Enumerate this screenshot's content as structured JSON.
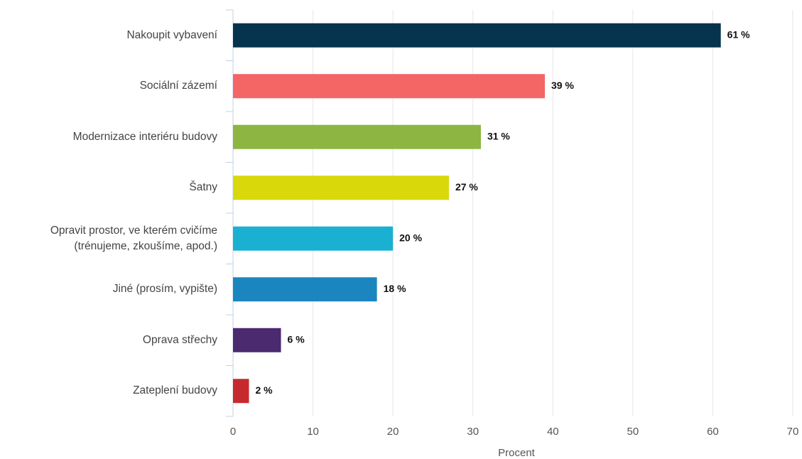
{
  "chart_data": {
    "type": "hbar",
    "categories": [
      "Nakoupit vybavení",
      "Sociální zázemí",
      "Modernizace interiéru budovy",
      "Šatny",
      "Opravit prostor, ve kterém cvičíme (trénujeme, zkoušíme, apod.)",
      "Jiné (prosím, vypište)",
      "Oprava střechy",
      "Zateplení budovy"
    ],
    "values": [
      61,
      39,
      31,
      27,
      20,
      18,
      6,
      2
    ],
    "value_labels": [
      "61 %",
      "39 %",
      "31 %",
      "27 %",
      "20 %",
      "18 %",
      "6 %",
      "2 %"
    ],
    "colors": [
      "#06344f",
      "#f46565",
      "#8db542",
      "#d8d80a",
      "#1ab0d1",
      "#1b85bf",
      "#4b2a6f",
      "#c62a2f"
    ],
    "xlabel": "Procent",
    "xlim": [
      0,
      70
    ],
    "xticks": [
      0,
      10,
      20,
      30,
      40,
      50,
      60,
      70
    ],
    "grid": true
  }
}
